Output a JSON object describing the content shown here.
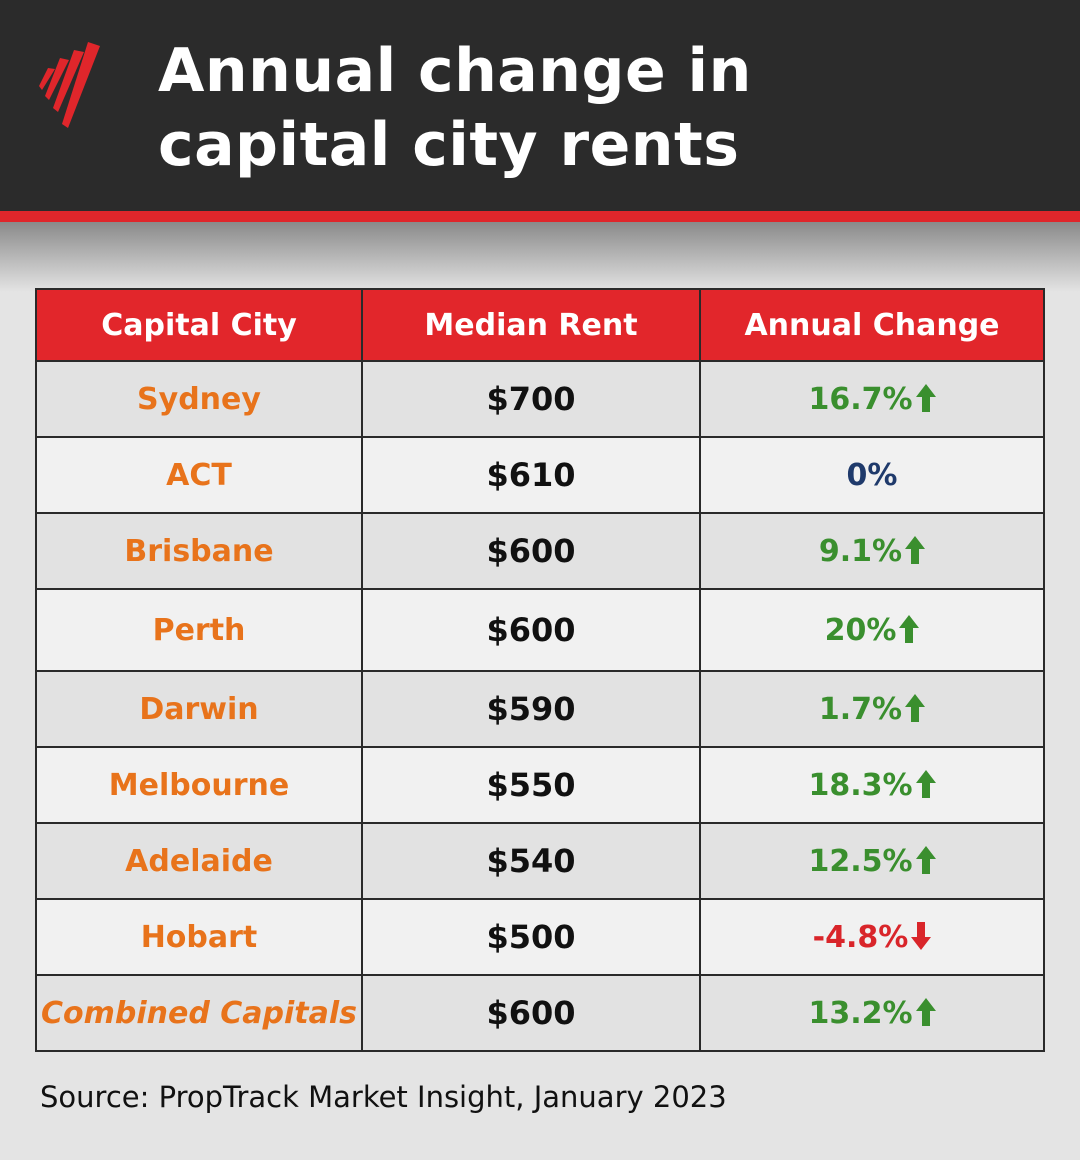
{
  "header": {
    "title": "Annual change in capital city rents"
  },
  "table": {
    "columns": [
      "Capital City",
      "Median Rent",
      "Annual Change"
    ],
    "rows": [
      [
        "Sydney",
        "$700",
        "16.7%"
      ],
      [
        "ACT",
        "$610",
        "0%"
      ],
      [
        "Brisbane",
        "$600",
        "9.1%"
      ],
      [
        "Perth",
        "$600",
        "20%"
      ],
      [
        "Darwin",
        "$590",
        "1.7%"
      ],
      [
        "Melbourne",
        "$550",
        "18.3%"
      ],
      [
        "Adelaide",
        "$540",
        "12.5%"
      ],
      [
        "Hobart",
        "$500",
        "-4.8%"
      ],
      [
        "Combined Capitals",
        "$600",
        "13.2%"
      ]
    ]
  },
  "footer": {
    "source": "Source: PropTrack Market Insight, January 2023"
  }
}
